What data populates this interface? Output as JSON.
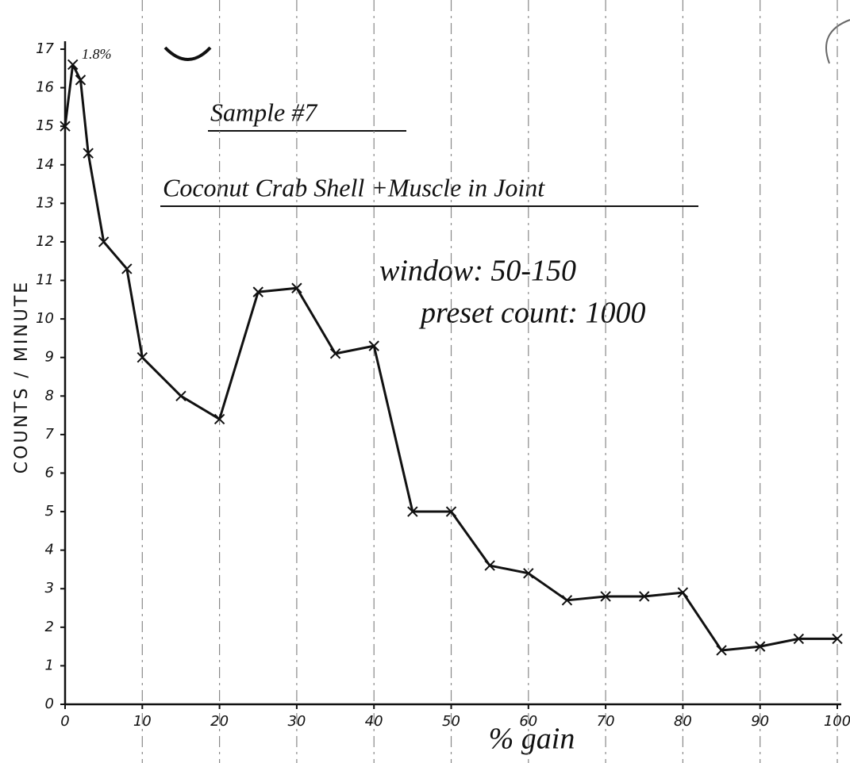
{
  "chart_data": {
    "type": "line",
    "title": "Sample #7",
    "subtitle": "Coconut Crab Shell +Muscle in Joint",
    "annotations": [
      "window: 50-150",
      "preset count: 1000",
      "1.8%"
    ],
    "x_label": "% gain",
    "y_label": "COUNTS / MINUTE",
    "x": [
      0,
      1,
      2,
      3,
      5,
      8,
      10,
      15,
      20,
      25,
      30,
      35,
      40,
      45,
      50,
      55,
      60,
      65,
      70,
      75,
      80,
      85,
      90,
      95,
      100
    ],
    "values": [
      15,
      16.6,
      16.2,
      14.3,
      12.0,
      11.3,
      9.0,
      8.0,
      7.4,
      10.7,
      10.8,
      9.1,
      9.3,
      5.0,
      5.0,
      3.6,
      3.4,
      2.7,
      2.8,
      2.8,
      2.9,
      1.4,
      1.5,
      1.7,
      1.7
    ],
    "color": "#111111",
    "xlim": [
      0,
      100
    ],
    "ylim": [
      0,
      17
    ],
    "xticks": [
      0,
      10,
      20,
      30,
      40,
      50,
      60,
      70,
      80,
      90,
      100
    ],
    "yticks": [
      0,
      1,
      2,
      3,
      4,
      5,
      6,
      7,
      8,
      9,
      10,
      11,
      12,
      13,
      14,
      15,
      16,
      17
    ],
    "grid": true
  }
}
